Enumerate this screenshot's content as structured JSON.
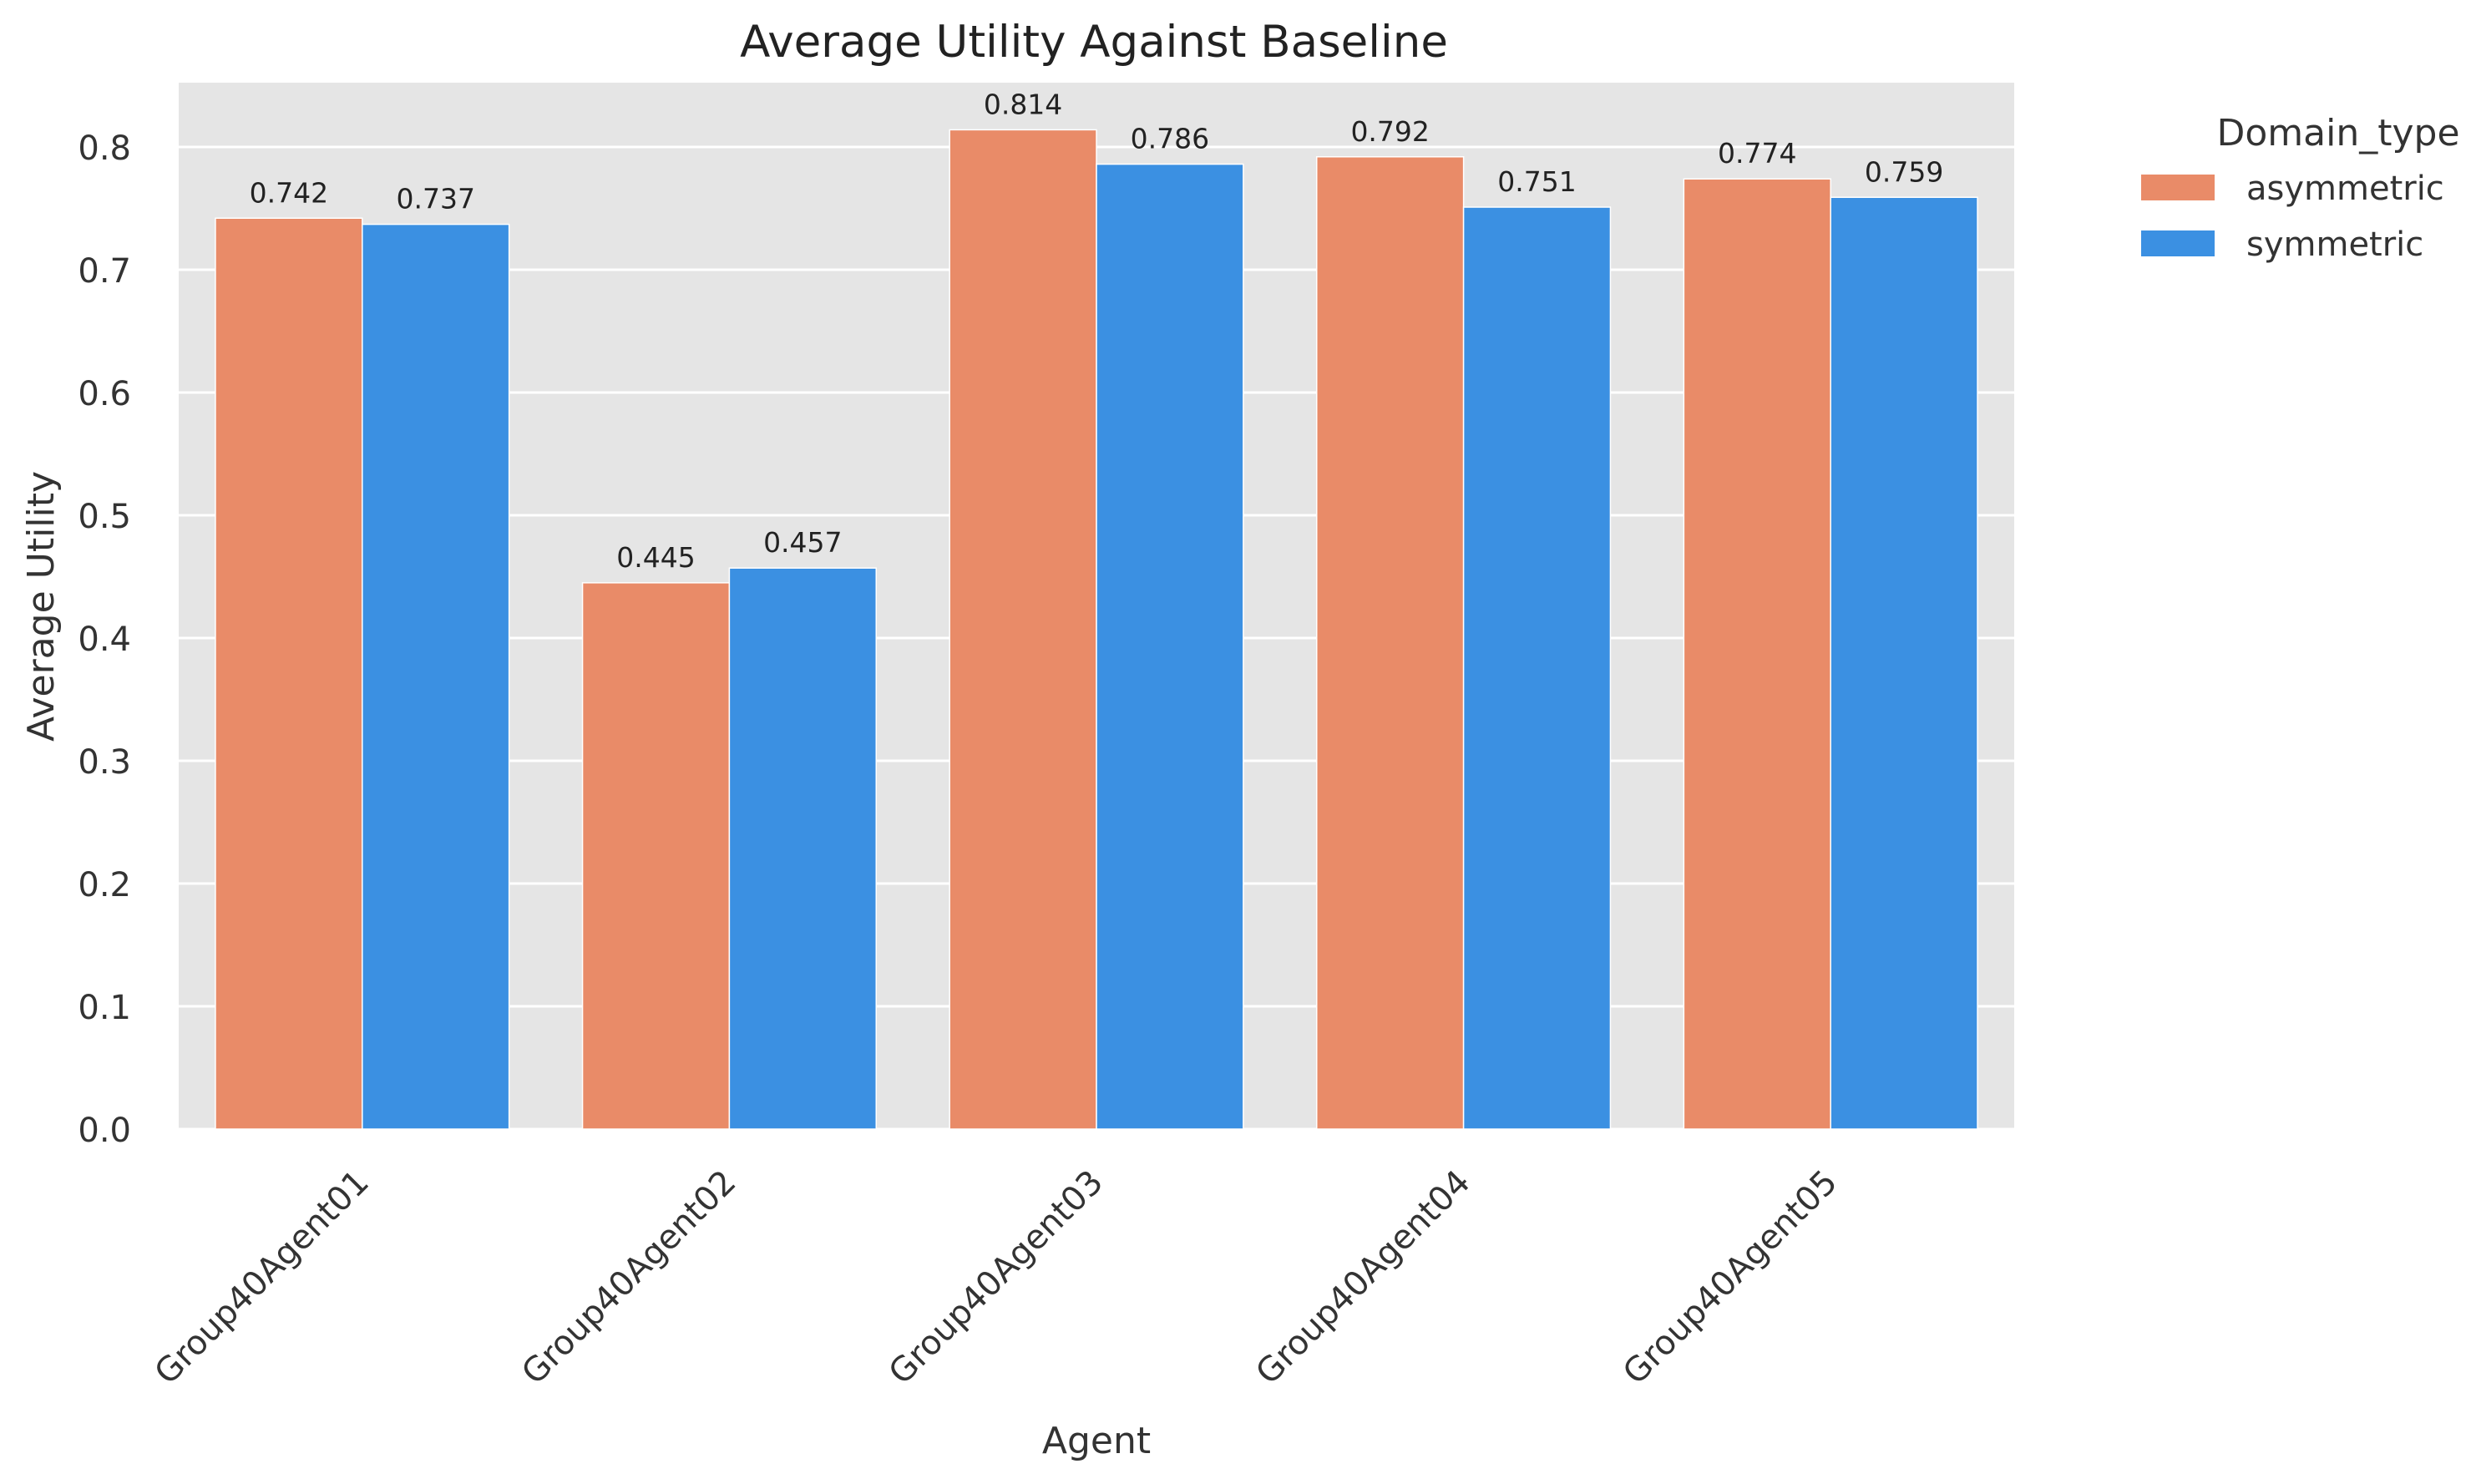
{
  "chart_data": {
    "type": "bar",
    "title": "Average Utility Against Baseline",
    "xlabel": "Agent",
    "ylabel": "Average Utility",
    "categories": [
      "Group40Agent01",
      "Group40Agent02",
      "Group40Agent03",
      "Group40Agent04",
      "Group40Agent05"
    ],
    "series": [
      {
        "name": "asymmetric",
        "values": [
          0.742,
          0.445,
          0.814,
          0.792,
          0.774
        ],
        "color": "#e98b68",
        "labels": [
          "0.742",
          "0.445",
          "0.814",
          "0.792",
          "0.774"
        ]
      },
      {
        "name": "symmetric",
        "values": [
          0.737,
          0.457,
          0.786,
          0.751,
          0.759
        ],
        "color": "#3b90e2",
        "labels": [
          "0.737",
          "0.457",
          "0.786",
          "0.751",
          "0.759"
        ]
      }
    ],
    "ylim": [
      0,
      0.85
    ],
    "yticks": [
      0.0,
      0.1,
      0.2,
      0.3,
      0.4,
      0.5,
      0.6,
      0.7,
      0.8
    ],
    "ytick_labels": [
      "0.0",
      "0.1",
      "0.2",
      "0.3",
      "0.4",
      "0.5",
      "0.6",
      "0.7",
      "0.8"
    ],
    "legend": {
      "title": "Domain_type",
      "placement": "outside-top-right"
    },
    "grid": true,
    "background": "#e5e5e5",
    "grid_color": "#ffffff"
  }
}
